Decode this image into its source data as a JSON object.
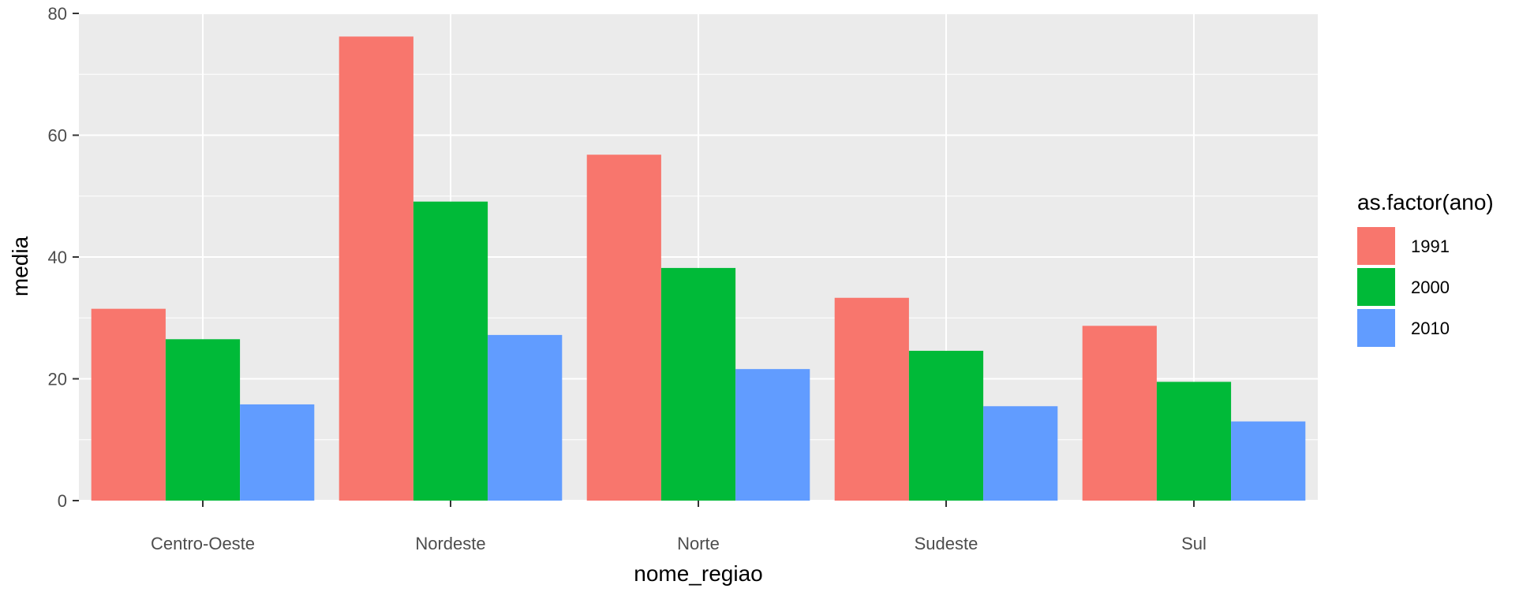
{
  "chart_data": {
    "type": "bar",
    "title": "",
    "xlabel": "nome_regiao",
    "ylabel": "media",
    "categories": [
      "Centro-Oeste",
      "Nordeste",
      "Norte",
      "Sudeste",
      "Sul"
    ],
    "series": [
      {
        "name": "1991",
        "color": "#F8766D",
        "values": [
          31.5,
          76.2,
          56.8,
          33.3,
          28.7
        ]
      },
      {
        "name": "2000",
        "color": "#00BA38",
        "values": [
          26.5,
          49.1,
          38.2,
          24.6,
          19.5
        ]
      },
      {
        "name": "2010",
        "color": "#619CFF",
        "values": [
          15.8,
          27.2,
          21.6,
          15.5,
          13.0
        ]
      }
    ],
    "ylim": [
      0,
      80
    ],
    "yticks": [
      "0",
      "20",
      "40",
      "60",
      "80"
    ],
    "grid": true,
    "legend": {
      "title": "as.factor(ano)",
      "position": "right"
    }
  }
}
